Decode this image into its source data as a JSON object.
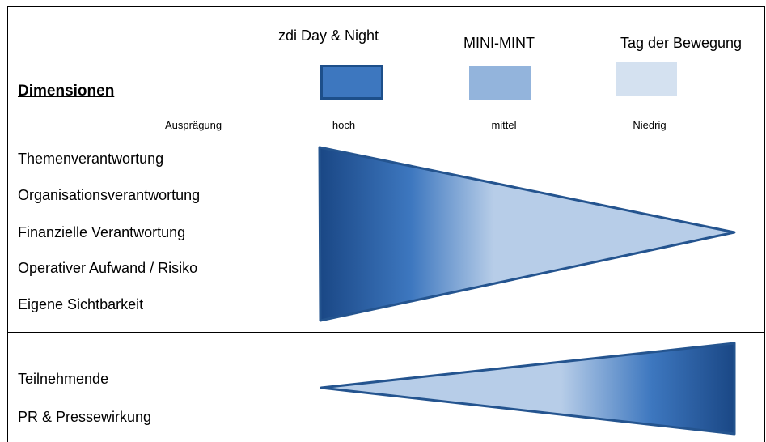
{
  "columns": [
    {
      "name": "zdi Day & Night",
      "level": "hoch",
      "color": "#3d77bf",
      "border": "#1d4f8a"
    },
    {
      "name": "MINI-MINT",
      "level": "mittel",
      "color": "#93b4dc"
    },
    {
      "name": "Tag der Bewegung",
      "level": "Niedrig",
      "color": "#d4e1f0"
    }
  ],
  "dimension_header": "Dimensionen",
  "level_header": "Ausprägung",
  "upper_dimensions": [
    "Themenverantwortung",
    "Organisationsverantwortung",
    "Finanzielle Verantwortung",
    "Operativer Aufwand / Risiko",
    "Eigene Sichtbarkeit"
  ],
  "lower_dimensions": [
    "Teilnehmende",
    "PR & Pressewirkung"
  ],
  "colors": {
    "dark": "#1a4785",
    "mid": "#3d77bf",
    "light": "#b7cde8",
    "outline": "#24548f"
  }
}
